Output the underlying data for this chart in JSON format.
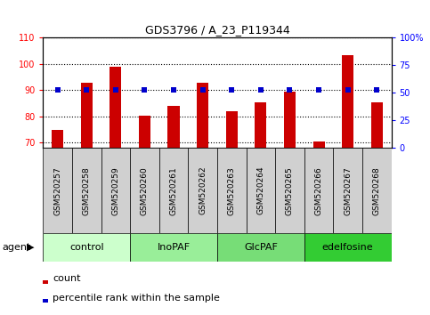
{
  "title": "GDS3796 / A_23_P119344",
  "categories": [
    "GSM520257",
    "GSM520258",
    "GSM520259",
    "GSM520260",
    "GSM520261",
    "GSM520262",
    "GSM520263",
    "GSM520264",
    "GSM520265",
    "GSM520266",
    "GSM520267",
    "GSM520268"
  ],
  "bar_values": [
    75,
    93,
    99,
    80.5,
    84,
    93,
    82,
    85.5,
    89.5,
    70.5,
    103.5,
    85.5
  ],
  "percentile_values": [
    53,
    53,
    53,
    53,
    53,
    53,
    53,
    53,
    53,
    53,
    53,
    53
  ],
  "bar_color": "#cc0000",
  "percentile_color": "#0000cc",
  "ylim_left": [
    68,
    110
  ],
  "ylim_right": [
    0,
    100
  ],
  "yticks_left": [
    70,
    80,
    90,
    100,
    110
  ],
  "yticks_right": [
    0,
    25,
    50,
    75,
    100
  ],
  "ytick_labels_right": [
    "0",
    "25",
    "50",
    "75",
    "100%"
  ],
  "groups": [
    {
      "label": "control",
      "start": 0,
      "end": 3,
      "color": "#ccffcc"
    },
    {
      "label": "InoPAF",
      "start": 3,
      "end": 6,
      "color": "#99ee99"
    },
    {
      "label": "GlcPAF",
      "start": 6,
      "end": 9,
      "color": "#77dd77"
    },
    {
      "label": "edelfosine",
      "start": 9,
      "end": 12,
      "color": "#33cc33"
    }
  ],
  "legend_count": "count",
  "legend_percentile": "percentile rank within the sample",
  "tick_bg_color": "#d0d0d0",
  "plot_bg_color": "#ffffff",
  "bar_width": 0.4
}
